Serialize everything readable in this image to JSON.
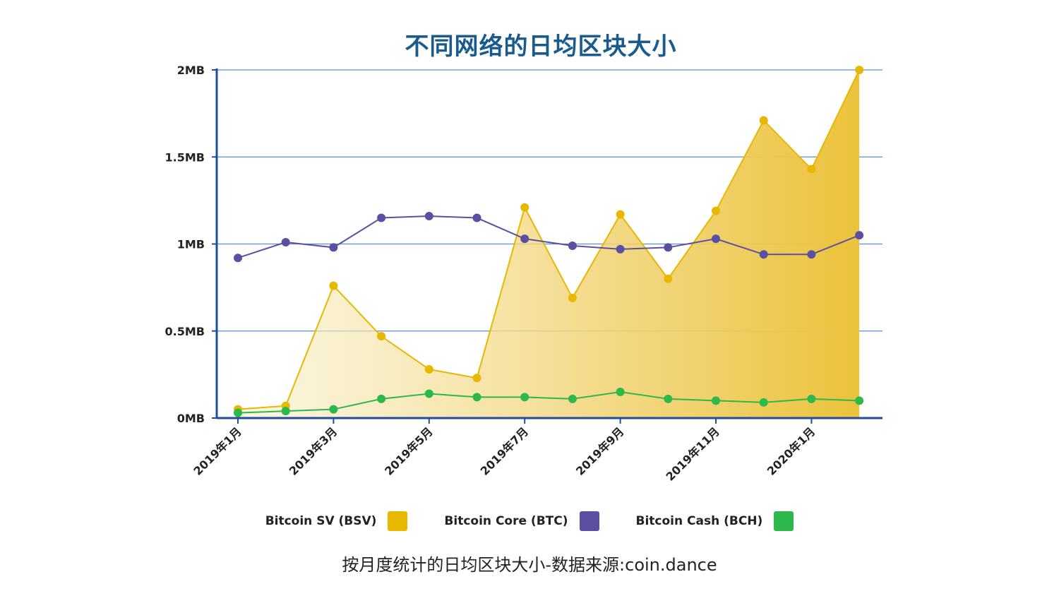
{
  "chart_data": {
    "type": "line",
    "title": "不同网络的日均区块大小",
    "caption": "按月度统计的日均区块大小-数据来源:coin.dance",
    "y_ticks": [
      "0MB",
      "0.5MB",
      "1MB",
      "1.5MB",
      "2MB"
    ],
    "ylim": [
      0,
      2
    ],
    "x_tick_labels": [
      "2019年1月",
      "2019年3月",
      "2019年5月",
      "2019年7月",
      "2019年9月",
      "2019年11月",
      "2020年1月"
    ],
    "months": [
      "2019-01",
      "2019-02",
      "2019-03",
      "2019-04",
      "2019-05",
      "2019-06",
      "2019-07",
      "2019-08",
      "2019-09",
      "2019-10",
      "2019-11",
      "2019-12",
      "2020-01",
      "2020-02"
    ],
    "grid": true,
    "legend_position": "bottom",
    "series": [
      {
        "name": "Bitcoin SV (BSV)",
        "color": "#e8b800",
        "area": true,
        "values": [
          0.05,
          0.07,
          0.76,
          0.47,
          0.28,
          0.23,
          1.21,
          0.69,
          1.17,
          0.8,
          1.19,
          1.71,
          1.43,
          2.0
        ]
      },
      {
        "name": "Bitcoin Core (BTC)",
        "color": "#5b4fa3",
        "values": [
          0.92,
          1.01,
          0.98,
          1.15,
          1.16,
          1.15,
          1.03,
          0.99,
          0.97,
          0.98,
          1.03,
          0.94,
          0.94,
          1.05
        ]
      },
      {
        "name": "Bitcoin Cash (BCH)",
        "color": "#2db84c",
        "values": [
          0.03,
          0.04,
          0.05,
          0.11,
          0.14,
          0.12,
          0.12,
          0.11,
          0.15,
          0.11,
          0.1,
          0.09,
          0.11,
          0.1
        ]
      }
    ]
  }
}
